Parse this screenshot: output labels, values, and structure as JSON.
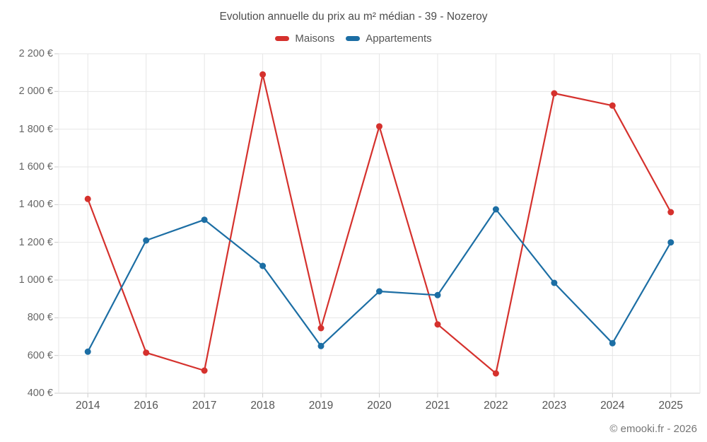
{
  "chart_data": {
    "type": "line",
    "title": "Evolution annuelle du prix au m² médian - 39 - Nozeroy",
    "categories": [
      "2014",
      "2016",
      "2017",
      "2018",
      "2019",
      "2020",
      "2021",
      "2022",
      "2023",
      "2024",
      "2025"
    ],
    "series": [
      {
        "name": "Maisons",
        "color": "#d5312d",
        "values": [
          1430,
          615,
          520,
          2090,
          745,
          1815,
          765,
          505,
          1990,
          1925,
          1360
        ]
      },
      {
        "name": "Appartements",
        "color": "#1c6ea4",
        "values": [
          620,
          1210,
          1320,
          1075,
          650,
          940,
          920,
          1375,
          985,
          665,
          1200
        ]
      }
    ],
    "xlabel": "",
    "ylabel": "",
    "ylim": [
      400,
      2200
    ],
    "y_ticks": [
      400,
      600,
      800,
      1000,
      1200,
      1400,
      1600,
      1800,
      2000,
      2200
    ],
    "y_tick_labels": [
      "400 €",
      "600 €",
      "800 €",
      "1 000 €",
      "1 200 €",
      "1 400 €",
      "1 600 €",
      "1 800 €",
      "2 000 €",
      "2 200 €"
    ],
    "grid": true,
    "legend_position": "top",
    "colors": {
      "grid_line": "#e6e6e6",
      "axis_line": "#cccccc",
      "tick_mark": "#cccccc"
    }
  },
  "footer": {
    "copyright": "© emooki.fr - 2026"
  }
}
